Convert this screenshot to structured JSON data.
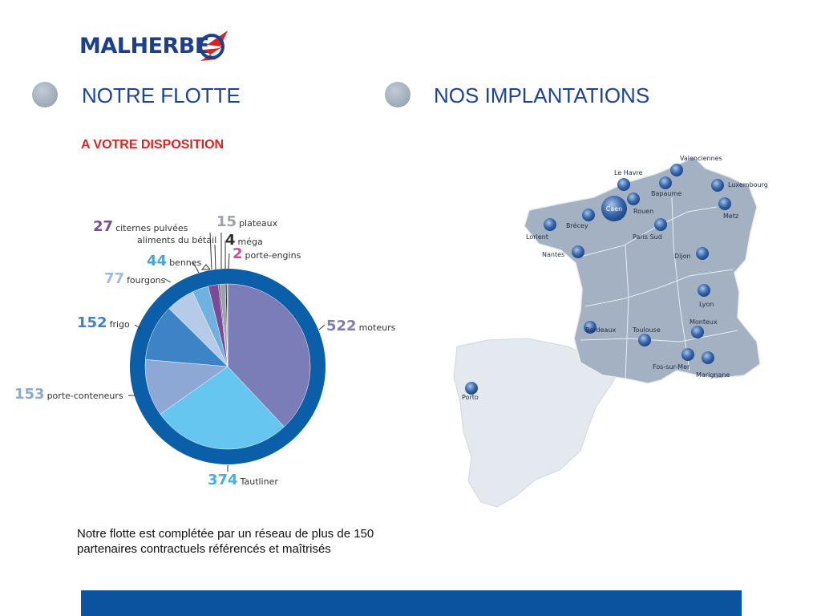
{
  "brand": {
    "name": "MALHERBE",
    "colors": {
      "navy": "#1d3f8f",
      "red": "#d9241f",
      "ring": "#0b5ea8",
      "footer": "#0b539e"
    }
  },
  "sections": {
    "fleet_title": "NOTRE FLOTTE",
    "locations_title": "NOS IMPLANTATIONS",
    "fleet_subtitle": "A VOTRE DISPOSITION"
  },
  "chart_data": {
    "type": "pie",
    "slices": [
      {
        "value": 522,
        "label": "moteurs",
        "color": "#7b7db8"
      },
      {
        "value": 374,
        "label": "Tautliner",
        "color": "#67c6ef"
      },
      {
        "value": 153,
        "label": "porte-conteneurs",
        "color": "#8ea8d6"
      },
      {
        "value": 152,
        "label": "frigo",
        "color": "#3d84c6"
      },
      {
        "value": 77,
        "label": "fourgons",
        "color": "#b5cbe8"
      },
      {
        "value": 44,
        "label": "bennes",
        "color": "#6fb2e0"
      },
      {
        "value": 27,
        "label": "citernes pulvées",
        "color": "#7a4b96"
      },
      {
        "value": 4,
        "label": "aliments du bétail",
        "color": "#4c4c4c"
      },
      {
        "value": 15,
        "label": "plateaux",
        "color": "#9aa3b0"
      },
      {
        "value": 4,
        "label": "méga",
        "color": "#2d2d2d"
      },
      {
        "value": 2,
        "label": "porte-engins",
        "color": "#d94897"
      }
    ]
  },
  "map": {
    "cities": [
      "Valenciennes",
      "Le Havre",
      "Bapaume",
      "Luxembourg",
      "Caen",
      "Rouen",
      "Metz",
      "Brécey",
      "Lorient",
      "Paris Sud",
      "Nantes",
      "Dijon",
      "Lyon",
      "Bordeaux",
      "Toulouse",
      "Monteux",
      "Fos-sur-Mer",
      "Marignane",
      "Porto"
    ]
  },
  "footnote": "Notre flotte est complétée par un réseau de plus de 150 partenaires contractuels référencés et maîtrisés"
}
